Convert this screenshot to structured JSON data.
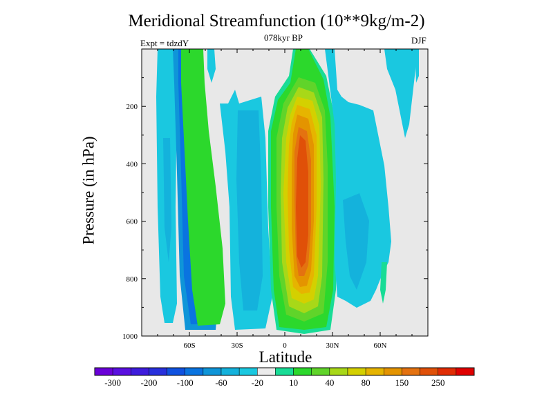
{
  "chart_data": {
    "type": "filled-contour",
    "title": "Meridional Streamfunction (10**9kg/m-2)",
    "subtitle": "078kyr BP",
    "left_label": "Expt = tdzdY",
    "right_label": "DJF",
    "xlabel": "Latitude",
    "ylabel": "Pressure (in hPa)",
    "xlim": [
      -90,
      90
    ],
    "ylim": [
      1000,
      0
    ],
    "x_ticks": [
      {
        "value": -60,
        "label": "60S"
      },
      {
        "value": -30,
        "label": "30S"
      },
      {
        "value": 0,
        "label": "0"
      },
      {
        "value": 30,
        "label": "30N"
      },
      {
        "value": 60,
        "label": "60N"
      }
    ],
    "y_ticks": [
      {
        "value": 200,
        "label": "200"
      },
      {
        "value": 400,
        "label": "400"
      },
      {
        "value": 600,
        "label": "600"
      },
      {
        "value": 800,
        "label": "800"
      },
      {
        "value": 1000,
        "label": "1000"
      }
    ],
    "colorbar": {
      "labels": [
        "-300",
        "-200",
        "-100",
        "-60",
        "-20",
        "10",
        "40",
        "80",
        "150",
        "250"
      ],
      "colors": [
        "#6a00d8",
        "#5a10e0",
        "#3e1cdc",
        "#2830dc",
        "#1052e0",
        "#0a74e0",
        "#0f95d8",
        "#14b2dc",
        "#1ac8e0",
        "#ebebeb",
        "#18dc96",
        "#2cd82c",
        "#60d42a",
        "#a8d818",
        "#d4d000",
        "#e6b400",
        "#e49400",
        "#e47210",
        "#e05008",
        "#e02c04",
        "#e00000"
      ]
    }
  }
}
